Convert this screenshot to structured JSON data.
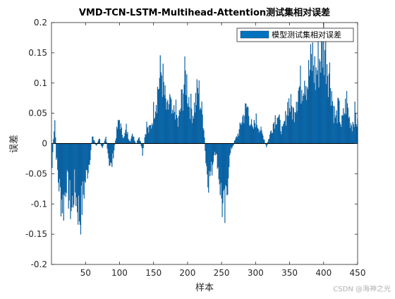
{
  "chart_data": {
    "type": "bar",
    "title": "VMD-TCN-LSTM-Multihead-Attention测试集相对误差",
    "xlabel": "样本",
    "ylabel": "误差",
    "xlim": [
      0,
      450
    ],
    "ylim": [
      -0.2,
      0.2
    ],
    "x_ticks": [
      50,
      100,
      150,
      200,
      250,
      300,
      350,
      400,
      450
    ],
    "x_tick_labels": [
      "50",
      "100",
      "150",
      "200",
      "250",
      "300",
      "350",
      "400",
      "450"
    ],
    "y_ticks": [
      -0.2,
      -0.15,
      -0.1,
      -0.05,
      0,
      0.05,
      0.1,
      0.15,
      0.2
    ],
    "y_tick_labels": [
      "-0.2",
      "-0.15",
      "-0.1",
      "-0.05",
      "0",
      "0.05",
      "0.1",
      "0.15",
      "0.2"
    ],
    "legend_position": "top-right",
    "grid": false,
    "bar_color": "#0072BD",
    "series": [
      {
        "name": "模型测试集相对误差",
        "anchors": [
          [
            1,
            -0.04
          ],
          [
            3,
            0.01
          ],
          [
            5,
            0.04
          ],
          [
            7,
            -0.02
          ],
          [
            10,
            -0.06
          ],
          [
            14,
            -0.09
          ],
          [
            18,
            -0.1
          ],
          [
            22,
            -0.06
          ],
          [
            26,
            -0.09
          ],
          [
            30,
            -0.11
          ],
          [
            34,
            -0.07
          ],
          [
            38,
            -0.1
          ],
          [
            42,
            -0.12
          ],
          [
            46,
            -0.09
          ],
          [
            50,
            -0.06
          ],
          [
            54,
            -0.04
          ],
          [
            57,
            -0.02
          ],
          [
            60,
            0.01
          ],
          [
            63,
            0.005
          ],
          [
            66,
            -0.005
          ],
          [
            70,
            0.01
          ],
          [
            75,
            -0.01
          ],
          [
            80,
            0.01
          ],
          [
            85,
            -0.03
          ],
          [
            88,
            -0.04
          ],
          [
            92,
            -0.01
          ],
          [
            96,
            0.02
          ],
          [
            100,
            0.04
          ],
          [
            103,
            0.02
          ],
          [
            107,
            0.01
          ],
          [
            110,
            0.025
          ],
          [
            113,
            0.01
          ],
          [
            116,
            0.005
          ],
          [
            120,
            0.015
          ],
          [
            124,
            0.0
          ],
          [
            128,
            0.01
          ],
          [
            131,
            0.005
          ],
          [
            134,
            -0.015
          ],
          [
            137,
            0.01
          ],
          [
            140,
            0.03
          ],
          [
            143,
            0.02
          ],
          [
            147,
            0.03
          ],
          [
            151,
            0.06
          ],
          [
            155,
            0.08
          ],
          [
            158,
            0.1
          ],
          [
            162,
            0.12
          ],
          [
            166,
            0.08
          ],
          [
            170,
            0.05
          ],
          [
            174,
            0.07
          ],
          [
            178,
            0.04
          ],
          [
            182,
            0.06
          ],
          [
            186,
            0.03
          ],
          [
            190,
            0.06
          ],
          [
            195,
            0.1
          ],
          [
            198,
            0.11
          ],
          [
            201,
            0.08
          ],
          [
            205,
            0.06
          ],
          [
            208,
            0.05
          ],
          [
            212,
            0.07
          ],
          [
            216,
            0.09
          ],
          [
            220,
            0.06
          ],
          [
            224,
            0.03
          ],
          [
            227,
            -0.03
          ],
          [
            231,
            -0.06
          ],
          [
            236,
            -0.04
          ],
          [
            240,
            -0.01
          ],
          [
            244,
            -0.03
          ],
          [
            248,
            -0.07
          ],
          [
            252,
            -0.11
          ],
          [
            255,
            -0.12
          ],
          [
            258,
            -0.08
          ],
          [
            261,
            -0.03
          ],
          [
            264,
            -0.01
          ],
          [
            268,
            0.0
          ],
          [
            272,
            0.01
          ],
          [
            276,
            0.02
          ],
          [
            280,
            0.04
          ],
          [
            284,
            0.05
          ],
          [
            288,
            0.06
          ],
          [
            292,
            0.04
          ],
          [
            296,
            0.02
          ],
          [
            300,
            0.04
          ],
          [
            304,
            0.03
          ],
          [
            308,
            0.02
          ],
          [
            312,
            0.01
          ],
          [
            316,
            -0.005
          ],
          [
            320,
            0.01
          ],
          [
            324,
            0.025
          ],
          [
            328,
            0.04
          ],
          [
            332,
            0.05
          ],
          [
            336,
            0.03
          ],
          [
            340,
            0.02
          ],
          [
            344,
            0.04
          ],
          [
            348,
            0.07
          ],
          [
            352,
            0.06
          ],
          [
            356,
            0.05
          ],
          [
            360,
            0.08
          ],
          [
            364,
            0.09
          ],
          [
            368,
            0.1
          ],
          [
            372,
            0.12
          ],
          [
            376,
            0.1
          ],
          [
            380,
            0.12
          ],
          [
            384,
            0.14
          ],
          [
            388,
            0.11
          ],
          [
            392,
            0.13
          ],
          [
            396,
            0.15
          ],
          [
            400,
            0.17
          ],
          [
            404,
            0.15
          ],
          [
            408,
            0.12
          ],
          [
            411,
            0.1
          ],
          [
            414,
            0.06
          ],
          [
            418,
            0.04
          ],
          [
            422,
            0.06
          ],
          [
            426,
            0.03
          ],
          [
            430,
            0.05
          ],
          [
            434,
            0.07
          ],
          [
            438,
            0.04
          ],
          [
            442,
            0.03
          ],
          [
            446,
            0.05
          ],
          [
            450,
            0.03
          ]
        ]
      }
    ]
  },
  "watermark": "CSDN @海神之光"
}
